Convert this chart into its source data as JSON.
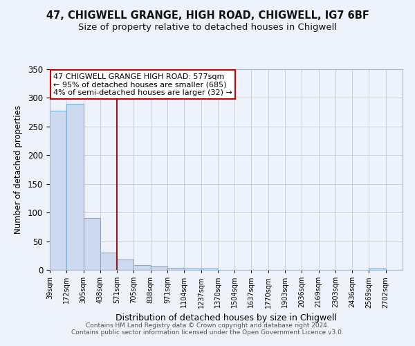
{
  "title": "47, CHIGWELL GRANGE, HIGH ROAD, CHIGWELL, IG7 6BF",
  "subtitle": "Size of property relative to detached houses in Chigwell",
  "xlabel": "Distribution of detached houses by size in Chigwell",
  "ylabel": "Number of detached properties",
  "bin_labels": [
    "39sqm",
    "172sqm",
    "305sqm",
    "438sqm",
    "571sqm",
    "705sqm",
    "838sqm",
    "971sqm",
    "1104sqm",
    "1237sqm",
    "1370sqm",
    "1504sqm",
    "1637sqm",
    "1770sqm",
    "1903sqm",
    "2036sqm",
    "2169sqm",
    "2303sqm",
    "2436sqm",
    "2569sqm",
    "2702sqm"
  ],
  "bar_heights": [
    278,
    290,
    90,
    30,
    18,
    9,
    6,
    4,
    3,
    3,
    0,
    0,
    0,
    0,
    0,
    0,
    0,
    0,
    0,
    2,
    0
  ],
  "bar_color": "#ccd9ee",
  "bar_edge_color": "#7aadd4",
  "annotation_text": "47 CHIGWELL GRANGE HIGH ROAD: 577sqm\n← 95% of detached houses are smaller (685)\n4% of semi-detached houses are larger (32) →",
  "vline_x_index": 4.0,
  "vline_color": "#8b1a1a",
  "annotation_box_color": "#cc0000",
  "annotation_text_color": "#000000",
  "ylim": [
    0,
    350
  ],
  "yticks": [
    0,
    50,
    100,
    150,
    200,
    250,
    300,
    350
  ],
  "grid_color": "#c8d0dc",
  "bg_color": "#eef2fa",
  "footer_text": "Contains HM Land Registry data © Crown copyright and database right 2024.\nContains public sector information licensed under the Open Government Licence v3.0.",
  "title_fontsize": 10.5,
  "subtitle_fontsize": 9.5
}
